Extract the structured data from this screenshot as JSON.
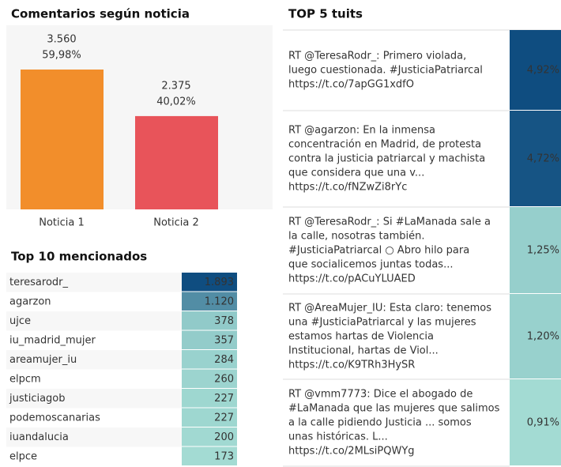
{
  "chart_data": {
    "type": "bar",
    "title": "Comentarios según noticia",
    "categories": [
      "Noticia 1",
      "Noticia 2"
    ],
    "values": [
      3560,
      2375
    ],
    "value_labels": [
      "3.560",
      "2.375"
    ],
    "shares": [
      59.98,
      40.02
    ],
    "share_labels": [
      "59,98%",
      "40,02%"
    ],
    "colors": [
      "#f28e2b",
      "#e8545a"
    ]
  },
  "mentions": {
    "title": "Top  10 mencionados",
    "names": [
      "teresarodr_",
      "agarzon",
      "ujce",
      "iu_madrid_mujer",
      "areamujer_iu",
      "elpcm",
      "justiciagob",
      "podemoscanarias",
      "iuandalucia",
      "elpce"
    ],
    "values": [
      1893,
      1120,
      378,
      357,
      284,
      260,
      227,
      227,
      200,
      173
    ],
    "value_labels": [
      "1.893",
      "1.120",
      "378",
      "357",
      "284",
      "260",
      "227",
      "227",
      "200",
      "173"
    ],
    "color_range": [
      "#a3dbd3",
      "#0f4d80"
    ]
  },
  "tweets": {
    "title": "TOP 5 tuits",
    "texts": [
      [
        "RT @TeresaRodr_: Primero violada,",
        "luego cuestionada. #JusticiaPatriarcal",
        "https://t.co/7apGG1xdfO"
      ],
      [
        "RT @agarzon: En la inmensa",
        "concentración en Madrid, de protesta",
        "contra la justicia patriarcal y machista",
        "que considera que una v...",
        "https://t.co/fNZwZi8rYc"
      ],
      [
        "RT @TeresaRodr_: Si #LaManada sale a",
        "la calle, nosotras también.",
        "#JusticiaPatriarcal ○ Abro hilo para",
        "que socialicemos juntas todas...",
        "https://t.co/pACuYLUAED"
      ],
      [
        "RT @AreaMujer_IU: Esta claro: tenemos",
        "una #JusticiaPatriarcal y las mujeres",
        "estamos hartas de Violencia",
        "Institucional, hartas de Viol...",
        "https://t.co/K9TRh3HySR"
      ],
      [
        "RT @vmm7773: Dice el abogado de",
        "#LaManada que las mujeres que salimos",
        "a la calle pidiendo Justicia ... somos",
        "unas históricas.  L...",
        "https://t.co/2MLsiPQWYg"
      ]
    ],
    "values": [
      4.92,
      4.72,
      1.25,
      1.2,
      0.91
    ],
    "value_labels": [
      "4,92%",
      "4,72%",
      "1,25%",
      "1,20%",
      "0,91%"
    ],
    "color_range": [
      "#a3dbd3",
      "#0f4d80"
    ]
  }
}
